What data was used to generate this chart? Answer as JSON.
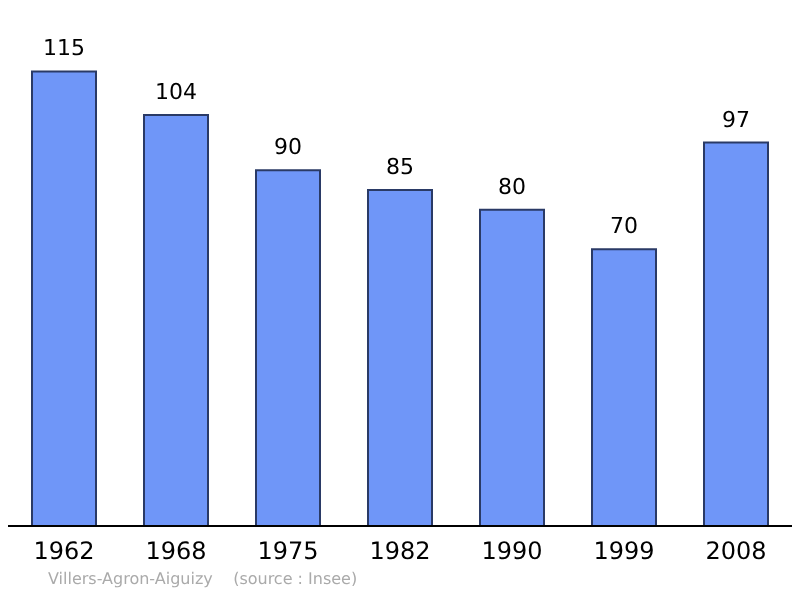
{
  "chart_data": {
    "type": "bar",
    "categories": [
      "1962",
      "1968",
      "1975",
      "1982",
      "1990",
      "1999",
      "2008"
    ],
    "values": [
      115,
      104,
      90,
      85,
      80,
      70,
      97
    ],
    "color": "#6f96f8",
    "data_labels": true,
    "annotations": [
      "Villers-Agron-Aiguizy    (source : Insee)"
    ]
  }
}
